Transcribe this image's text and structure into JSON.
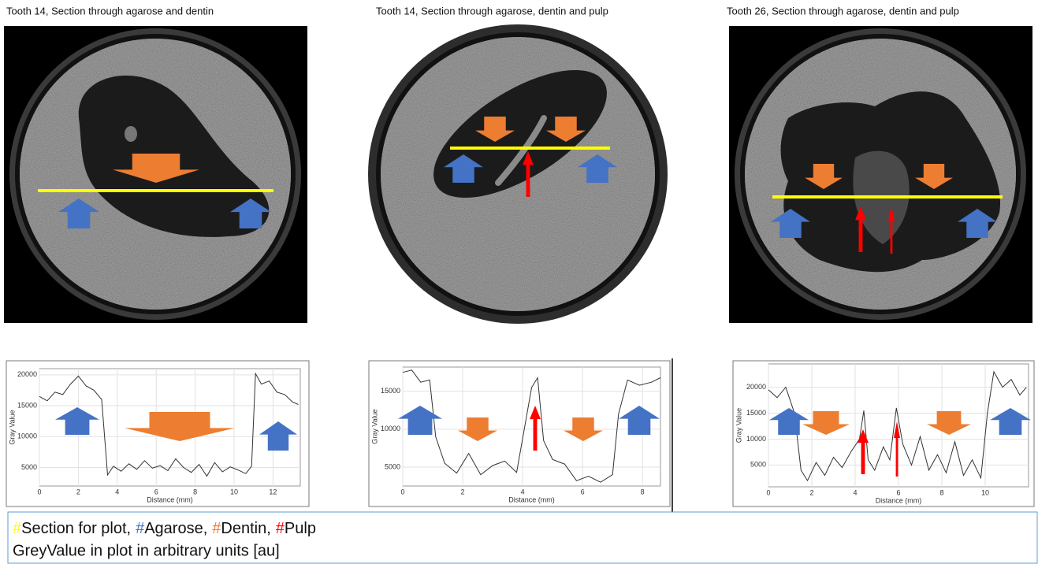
{
  "panels": [
    {
      "title": "Tooth 14, Section through agarose and dentin"
    },
    {
      "title": "Tooth 14, Section through agarose, dentin and pulp"
    },
    {
      "title": "Tooth 26, Section through agarose, dentin and pulp"
    }
  ],
  "chart_data": [
    {
      "type": "line",
      "x_label": "Distance (mm)",
      "y_label": "Gray Value",
      "color": "#333333",
      "grid": true,
      "x": [
        0,
        0.4,
        0.8,
        1.2,
        1.6,
        2.0,
        2.4,
        2.8,
        3.2,
        3.5,
        3.8,
        4.2,
        4.6,
        5.0,
        5.4,
        5.8,
        6.2,
        6.6,
        7.0,
        7.4,
        7.8,
        8.2,
        8.6,
        9.0,
        9.4,
        9.8,
        10.2,
        10.6,
        10.9,
        11.1,
        11.4,
        11.8,
        12.2,
        12.6,
        13.0,
        13.3
      ],
      "values": [
        16500,
        15800,
        17200,
        16800,
        18500,
        19800,
        18200,
        17500,
        16000,
        3800,
        5200,
        4400,
        5600,
        4700,
        6100,
        4900,
        5300,
        4500,
        6400,
        5000,
        4200,
        5500,
        3600,
        5800,
        4300,
        5100,
        4600,
        4000,
        5200,
        20200,
        18500,
        19000,
        17200,
        16800,
        15600,
        15200
      ],
      "xlim": [
        0,
        13.4
      ],
      "xticks": [
        0,
        2,
        4,
        6,
        8,
        10,
        12
      ],
      "ylim": [
        2000,
        21000
      ],
      "yticks": [
        5000,
        10000,
        15000,
        20000
      ]
    },
    {
      "type": "line",
      "x_label": "Distance (mm)",
      "y_label": "Gray Value",
      "color": "#333333",
      "grid": true,
      "x": [
        0,
        0.3,
        0.6,
        0.9,
        1.1,
        1.4,
        1.8,
        2.2,
        2.6,
        3.0,
        3.4,
        3.8,
        4.1,
        4.3,
        4.5,
        4.7,
        5.0,
        5.4,
        5.8,
        6.2,
        6.6,
        7.0,
        7.2,
        7.5,
        7.9,
        8.3,
        8.6
      ],
      "values": [
        17500,
        17800,
        16200,
        16500,
        9000,
        5500,
        4200,
        6800,
        4000,
        5200,
        5800,
        4300,
        11000,
        15500,
        16800,
        8500,
        6000,
        5400,
        3200,
        3800,
        3000,
        4000,
        12000,
        16500,
        15800,
        16200,
        16800
      ],
      "xlim": [
        0,
        8.6
      ],
      "xticks": [
        0,
        2,
        4,
        6,
        8
      ],
      "ylim": [
        2500,
        18200
      ],
      "yticks": [
        5000,
        10000,
        15000
      ]
    },
    {
      "type": "line",
      "x_label": "Distance (mm)",
      "y_label": "Gray Value",
      "color": "#333333",
      "grid": true,
      "x": [
        0,
        0.4,
        0.8,
        1.2,
        1.5,
        1.8,
        2.2,
        2.6,
        3.0,
        3.4,
        3.8,
        4.2,
        4.4,
        4.6,
        4.9,
        5.3,
        5.6,
        5.9,
        6.2,
        6.6,
        7.0,
        7.4,
        7.8,
        8.2,
        8.6,
        9.0,
        9.4,
        9.8,
        10.1,
        10.4,
        10.8,
        11.2,
        11.6,
        11.9
      ],
      "values": [
        19500,
        18000,
        20000,
        15000,
        4000,
        2000,
        5500,
        3000,
        6500,
        4500,
        7500,
        10000,
        15500,
        6000,
        4000,
        8500,
        6000,
        16000,
        9000,
        5000,
        10500,
        4000,
        7000,
        3500,
        9500,
        3000,
        6000,
        2500,
        15000,
        23000,
        20000,
        21500,
        18500,
        20000
      ],
      "xlim": [
        0,
        12
      ],
      "xticks": [
        0,
        2,
        4,
        6,
        8,
        10
      ],
      "ylim": [
        800,
        24500
      ],
      "yticks": [
        5000,
        10000,
        15000,
        20000
      ]
    }
  ],
  "caption": {
    "items": [
      {
        "marker": "#",
        "label": "Section for plot,",
        "color": "#ffff00"
      },
      {
        "marker": "#",
        "label": "Agarose,",
        "color": "#4472c4"
      },
      {
        "marker": "#",
        "label": "Dentin,",
        "color": "#ed7d31"
      },
      {
        "marker": "#",
        "label": "Pulp",
        "color": "#ff0000"
      }
    ],
    "note": "GreyValue in plot in arbitrary units [au]"
  }
}
